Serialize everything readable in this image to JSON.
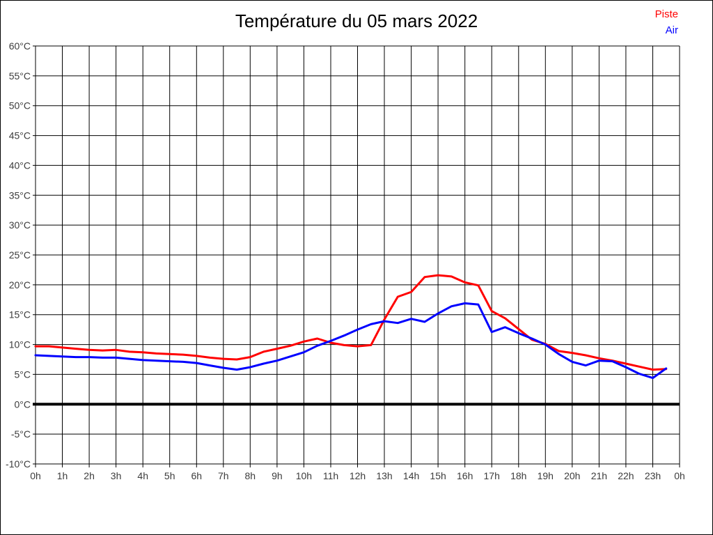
{
  "title": "Température du 05 mars 2022",
  "legend": [
    {
      "label": "Piste",
      "color": "#ff0000"
    },
    {
      "label": "Air",
      "color": "#0000ff"
    }
  ],
  "colors": {
    "grid": "#000000",
    "zero_line": "#000000",
    "axis_text": "#3c3c3c",
    "title_text": "#000000",
    "background": "#ffffff",
    "border": "#000000"
  },
  "chart_data": {
    "type": "line",
    "title": "Température du 05 mars 2022",
    "xlabel": "",
    "ylabel": "",
    "xlim": [
      0,
      24
    ],
    "ylim": [
      -10,
      60
    ],
    "grid": true,
    "legend_position": "top-right",
    "zero_line_value": 0,
    "x_tick_values": [
      0,
      1,
      2,
      3,
      4,
      5,
      6,
      7,
      8,
      9,
      10,
      11,
      12,
      13,
      14,
      15,
      16,
      17,
      18,
      19,
      20,
      21,
      22,
      23,
      24
    ],
    "x_tick_labels": [
      "0h",
      "1h",
      "2h",
      "3h",
      "4h",
      "5h",
      "6h",
      "7h",
      "8h",
      "9h",
      "10h",
      "11h",
      "12h",
      "13h",
      "14h",
      "15h",
      "16h",
      "17h",
      "18h",
      "19h",
      "20h",
      "21h",
      "22h",
      "23h",
      "0h"
    ],
    "y_tick_values": [
      60,
      55,
      50,
      45,
      40,
      35,
      30,
      25,
      20,
      15,
      10,
      5,
      0,
      -5,
      -10
    ],
    "y_tick_labels": [
      "60°C",
      "55°C",
      "50°C",
      "45°C",
      "40°C",
      "35°C",
      "30°C",
      "25°C",
      "20°C",
      "15°C",
      "10°C",
      "5°C",
      "0°C",
      "-5°C",
      "-10°C"
    ],
    "x_hours": [
      0,
      0.5,
      1,
      1.5,
      2,
      2.5,
      3,
      3.5,
      4,
      4.5,
      5,
      5.5,
      6,
      6.5,
      7,
      7.5,
      8,
      8.5,
      9,
      9.5,
      10,
      10.5,
      11,
      11.5,
      12,
      12.5,
      13,
      13.5,
      14,
      14.5,
      15,
      15.5,
      16,
      16.5,
      17,
      17.5,
      18,
      18.5,
      19,
      19.5,
      20,
      20.5,
      21,
      21.5,
      22,
      22.5,
      23,
      23.5
    ],
    "series": [
      {
        "name": "Piste",
        "color": "#ff0000",
        "values": [
          9.7,
          9.7,
          9.5,
          9.3,
          9.1,
          9.0,
          9.1,
          8.8,
          8.7,
          8.5,
          8.4,
          8.3,
          8.1,
          7.8,
          7.6,
          7.5,
          7.9,
          8.8,
          9.3,
          9.8,
          10.5,
          11.0,
          10.3,
          9.9,
          9.7,
          9.9,
          14.2,
          18.0,
          18.8,
          21.3,
          21.6,
          21.4,
          20.4,
          19.9,
          15.6,
          14.4,
          12.6,
          10.8,
          10.1,
          8.9,
          8.6,
          8.2,
          7.7,
          7.3,
          6.8,
          6.3,
          5.8,
          5.9
        ]
      },
      {
        "name": "Air",
        "color": "#0000ff",
        "values": [
          8.2,
          8.1,
          8.0,
          7.9,
          7.9,
          7.8,
          7.8,
          7.6,
          7.4,
          7.3,
          7.2,
          7.1,
          6.9,
          6.5,
          6.1,
          5.8,
          6.2,
          6.8,
          7.3,
          8.0,
          8.7,
          9.8,
          10.6,
          11.5,
          12.5,
          13.4,
          13.9,
          13.6,
          14.3,
          13.8,
          15.2,
          16.4,
          16.9,
          16.7,
          12.1,
          12.9,
          11.9,
          11.0,
          10.0,
          8.4,
          7.1,
          6.5,
          7.3,
          7.2,
          6.2,
          5.1,
          4.4,
          6.0
        ]
      }
    ]
  }
}
